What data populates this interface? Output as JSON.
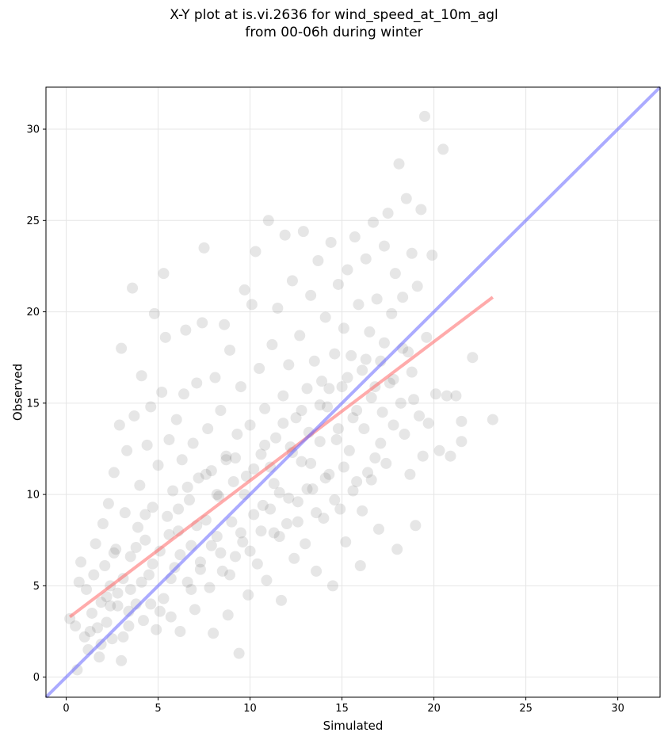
{
  "chart_data": {
    "type": "scatter",
    "title_line1": "X-Y plot at is.vi.2636 for wind_speed_at_10m_agl",
    "title_line2": "from 00-06h during winter",
    "xlabel": "Simulated",
    "ylabel": "Observed",
    "xlim": [
      -1.1,
      32.3
    ],
    "ylim": [
      -1.1,
      32.3
    ],
    "xticks": [
      0,
      5,
      10,
      15,
      20,
      25,
      30
    ],
    "yticks": [
      0,
      5,
      10,
      15,
      20,
      25,
      30
    ],
    "grid": true,
    "point_color": "#555555",
    "point_opacity": 0.15,
    "series": [
      {
        "type": "scatter",
        "points": [
          [
            0.2,
            3.2
          ],
          [
            0.5,
            2.8
          ],
          [
            0.6,
            0.4
          ],
          [
            0.7,
            5.2
          ],
          [
            0.8,
            6.3
          ],
          [
            1.0,
            2.2
          ],
          [
            1.1,
            4.8
          ],
          [
            1.2,
            1.5
          ],
          [
            1.4,
            3.5
          ],
          [
            1.5,
            5.6
          ],
          [
            1.6,
            7.3
          ],
          [
            1.7,
            2.7
          ],
          [
            1.8,
            1.1
          ],
          [
            1.9,
            4.1
          ],
          [
            2.0,
            8.4
          ],
          [
            2.1,
            6.1
          ],
          [
            2.2,
            3.0
          ],
          [
            2.3,
            9.5
          ],
          [
            2.4,
            5.0
          ],
          [
            2.5,
            2.1
          ],
          [
            2.6,
            11.2
          ],
          [
            2.7,
            7.0
          ],
          [
            2.8,
            3.9
          ],
          [
            2.9,
            13.8
          ],
          [
            3.0,
            18.0
          ],
          [
            3.0,
            0.9
          ],
          [
            3.1,
            5.4
          ],
          [
            3.2,
            9.0
          ],
          [
            3.3,
            12.4
          ],
          [
            3.4,
            2.8
          ],
          [
            3.5,
            6.6
          ],
          [
            3.6,
            21.3
          ],
          [
            3.7,
            14.3
          ],
          [
            3.8,
            4.0
          ],
          [
            3.9,
            8.2
          ],
          [
            4.0,
            10.5
          ],
          [
            4.1,
            16.5
          ],
          [
            4.2,
            3.1
          ],
          [
            4.3,
            7.5
          ],
          [
            4.4,
            12.7
          ],
          [
            4.5,
            5.6
          ],
          [
            4.6,
            14.8
          ],
          [
            4.7,
            9.3
          ],
          [
            4.8,
            19.9
          ],
          [
            4.9,
            2.6
          ],
          [
            5.0,
            11.6
          ],
          [
            5.1,
            6.9
          ],
          [
            5.2,
            15.6
          ],
          [
            5.3,
            22.1
          ],
          [
            5.3,
            4.3
          ],
          [
            5.4,
            18.6
          ],
          [
            5.5,
            8.8
          ],
          [
            5.6,
            13.0
          ],
          [
            5.7,
            3.3
          ],
          [
            5.8,
            10.2
          ],
          [
            5.9,
            6.0
          ],
          [
            6.0,
            14.1
          ],
          [
            6.1,
            8.0
          ],
          [
            6.2,
            2.5
          ],
          [
            6.3,
            11.9
          ],
          [
            6.4,
            15.5
          ],
          [
            6.5,
            19.0
          ],
          [
            6.6,
            5.2
          ],
          [
            6.7,
            9.7
          ],
          [
            6.8,
            7.2
          ],
          [
            6.9,
            12.8
          ],
          [
            7.0,
            3.7
          ],
          [
            7.1,
            16.1
          ],
          [
            7.2,
            10.9
          ],
          [
            7.3,
            6.3
          ],
          [
            7.4,
            19.4
          ],
          [
            7.5,
            23.5
          ],
          [
            7.6,
            8.6
          ],
          [
            7.7,
            13.6
          ],
          [
            7.8,
            4.9
          ],
          [
            7.9,
            11.3
          ],
          [
            8.0,
            2.4
          ],
          [
            8.1,
            16.4
          ],
          [
            8.2,
            7.7
          ],
          [
            8.3,
            9.9
          ],
          [
            8.4,
            14.6
          ],
          [
            8.5,
            5.8
          ],
          [
            8.6,
            19.3
          ],
          [
            8.7,
            12.1
          ],
          [
            8.8,
            3.4
          ],
          [
            8.9,
            17.9
          ],
          [
            9.0,
            8.5
          ],
          [
            9.1,
            10.7
          ],
          [
            9.2,
            6.6
          ],
          [
            9.3,
            13.3
          ],
          [
            9.4,
            1.3
          ],
          [
            9.5,
            15.9
          ],
          [
            9.6,
            7.4
          ],
          [
            9.7,
            21.2
          ],
          [
            9.8,
            11.0
          ],
          [
            9.9,
            4.5
          ],
          [
            10.0,
            13.8
          ],
          [
            10.1,
            20.4
          ],
          [
            10.2,
            8.9
          ],
          [
            10.3,
            23.3
          ],
          [
            10.4,
            6.2
          ],
          [
            10.5,
            16.9
          ],
          [
            10.6,
            12.2
          ],
          [
            10.7,
            9.4
          ],
          [
            10.8,
            14.7
          ],
          [
            10.9,
            5.3
          ],
          [
            11.0,
            25.0
          ],
          [
            11.1,
            11.5
          ],
          [
            11.2,
            18.2
          ],
          [
            11.3,
            7.9
          ],
          [
            11.4,
            13.1
          ],
          [
            11.5,
            20.2
          ],
          [
            11.6,
            10.1
          ],
          [
            11.7,
            4.2
          ],
          [
            11.8,
            15.4
          ],
          [
            11.9,
            24.2
          ],
          [
            12.0,
            8.4
          ],
          [
            12.1,
            17.1
          ],
          [
            12.2,
            12.6
          ],
          [
            12.3,
            21.7
          ],
          [
            12.4,
            6.5
          ],
          [
            12.5,
            14.2
          ],
          [
            12.6,
            9.6
          ],
          [
            12.7,
            18.7
          ],
          [
            12.8,
            11.8
          ],
          [
            12.9,
            24.4
          ],
          [
            13.0,
            7.3
          ],
          [
            13.1,
            15.8
          ],
          [
            13.2,
            13.4
          ],
          [
            13.3,
            20.9
          ],
          [
            13.4,
            10.3
          ],
          [
            13.5,
            17.3
          ],
          [
            13.6,
            5.8
          ],
          [
            13.7,
            22.8
          ],
          [
            13.8,
            12.9
          ],
          [
            13.9,
            16.2
          ],
          [
            14.0,
            8.7
          ],
          [
            14.1,
            19.7
          ],
          [
            14.2,
            14.8
          ],
          [
            14.3,
            11.1
          ],
          [
            14.4,
            23.8
          ],
          [
            14.5,
            5.0
          ],
          [
            14.6,
            17.7
          ],
          [
            14.7,
            13.0
          ],
          [
            14.8,
            21.5
          ],
          [
            14.9,
            9.2
          ],
          [
            15.0,
            15.9
          ],
          [
            15.1,
            19.1
          ],
          [
            15.2,
            7.4
          ],
          [
            15.3,
            22.3
          ],
          [
            15.4,
            12.4
          ],
          [
            15.5,
            17.6
          ],
          [
            15.6,
            14.2
          ],
          [
            15.7,
            24.1
          ],
          [
            15.8,
            10.7
          ],
          [
            15.9,
            20.4
          ],
          [
            16.0,
            6.1
          ],
          [
            16.1,
            16.8
          ],
          [
            16.2,
            13.6
          ],
          [
            16.3,
            22.9
          ],
          [
            16.4,
            11.2
          ],
          [
            16.5,
            18.9
          ],
          [
            16.6,
            15.3
          ],
          [
            16.7,
            24.9
          ],
          [
            16.8,
            12.0
          ],
          [
            16.9,
            20.7
          ],
          [
            17.0,
            8.1
          ],
          [
            17.1,
            17.3
          ],
          [
            17.2,
            14.5
          ],
          [
            17.3,
            23.6
          ],
          [
            17.4,
            11.7
          ],
          [
            17.5,
            25.4
          ],
          [
            17.6,
            16.1
          ],
          [
            17.7,
            19.9
          ],
          [
            17.8,
            13.8
          ],
          [
            17.9,
            22.1
          ],
          [
            18.0,
            7.0
          ],
          [
            18.1,
            28.1
          ],
          [
            18.2,
            15.0
          ],
          [
            18.3,
            20.8
          ],
          [
            18.4,
            13.3
          ],
          [
            18.5,
            26.2
          ],
          [
            18.6,
            17.8
          ],
          [
            18.7,
            11.1
          ],
          [
            18.8,
            23.2
          ],
          [
            18.9,
            15.2
          ],
          [
            19.0,
            8.3
          ],
          [
            19.1,
            21.4
          ],
          [
            19.2,
            14.3
          ],
          [
            19.3,
            25.6
          ],
          [
            19.4,
            12.1
          ],
          [
            19.5,
            30.7
          ],
          [
            19.6,
            18.6
          ],
          [
            19.7,
            13.9
          ],
          [
            19.9,
            23.1
          ],
          [
            20.1,
            15.5
          ],
          [
            20.3,
            12.4
          ],
          [
            20.5,
            28.9
          ],
          [
            20.7,
            15.4
          ],
          [
            20.9,
            12.1
          ],
          [
            21.2,
            15.4
          ],
          [
            21.5,
            14.0
          ],
          [
            21.5,
            12.9
          ],
          [
            22.1,
            17.5
          ],
          [
            23.2,
            14.1
          ],
          [
            2.4,
            3.9
          ],
          [
            2.8,
            4.6
          ],
          [
            3.4,
            3.6
          ],
          [
            3.8,
            7.1
          ],
          [
            4.3,
            8.9
          ],
          [
            4.7,
            6.2
          ],
          [
            5.6,
            7.8
          ],
          [
            6.1,
            9.2
          ],
          [
            6.6,
            10.4
          ],
          [
            7.1,
            8.3
          ],
          [
            7.6,
            11.1
          ],
          [
            8.2,
            10.0
          ],
          [
            8.7,
            11.9
          ],
          [
            9.2,
            12.0
          ],
          [
            9.7,
            10.0
          ],
          [
            10.2,
            11.4
          ],
          [
            10.8,
            12.7
          ],
          [
            11.3,
            10.6
          ],
          [
            11.8,
            13.9
          ],
          [
            12.3,
            12.3
          ],
          [
            12.8,
            14.6
          ],
          [
            13.3,
            11.7
          ],
          [
            13.8,
            14.9
          ],
          [
            14.3,
            15.8
          ],
          [
            14.8,
            13.6
          ],
          [
            15.3,
            16.4
          ],
          [
            15.8,
            14.6
          ],
          [
            16.3,
            17.4
          ],
          [
            16.8,
            15.9
          ],
          [
            17.3,
            18.3
          ],
          [
            17.8,
            16.3
          ],
          [
            18.3,
            18.0
          ],
          [
            18.8,
            16.7
          ],
          [
            1.3,
            2.5
          ],
          [
            1.9,
            1.8
          ],
          [
            2.2,
            4.4
          ],
          [
            2.6,
            6.8
          ],
          [
            3.1,
            2.2
          ],
          [
            3.5,
            4.8
          ],
          [
            4.1,
            5.2
          ],
          [
            4.6,
            4.0
          ],
          [
            5.1,
            3.6
          ],
          [
            5.7,
            5.4
          ],
          [
            6.2,
            6.7
          ],
          [
            6.8,
            4.8
          ],
          [
            7.3,
            5.9
          ],
          [
            7.9,
            7.2
          ],
          [
            8.4,
            6.8
          ],
          [
            8.9,
            5.6
          ],
          [
            9.5,
            7.9
          ],
          [
            10.0,
            6.9
          ],
          [
            10.6,
            8.0
          ],
          [
            11.1,
            9.2
          ],
          [
            11.6,
            7.7
          ],
          [
            12.1,
            9.8
          ],
          [
            12.6,
            8.5
          ],
          [
            13.1,
            10.3
          ],
          [
            13.6,
            9.0
          ],
          [
            14.1,
            10.9
          ],
          [
            14.6,
            9.7
          ],
          [
            15.1,
            11.5
          ],
          [
            15.6,
            10.2
          ],
          [
            16.1,
            9.1
          ],
          [
            16.6,
            10.8
          ],
          [
            17.1,
            12.8
          ]
        ]
      },
      {
        "type": "line",
        "points": [
          [
            0.2,
            3.3
          ],
          [
            23.2,
            20.8
          ]
        ],
        "color": "#ff6666",
        "opacity": 0.55
      },
      {
        "type": "line",
        "points": [
          [
            -1.1,
            -1.1
          ],
          [
            32.3,
            32.3
          ]
        ],
        "color": "#6666ff",
        "opacity": 0.55
      }
    ]
  }
}
